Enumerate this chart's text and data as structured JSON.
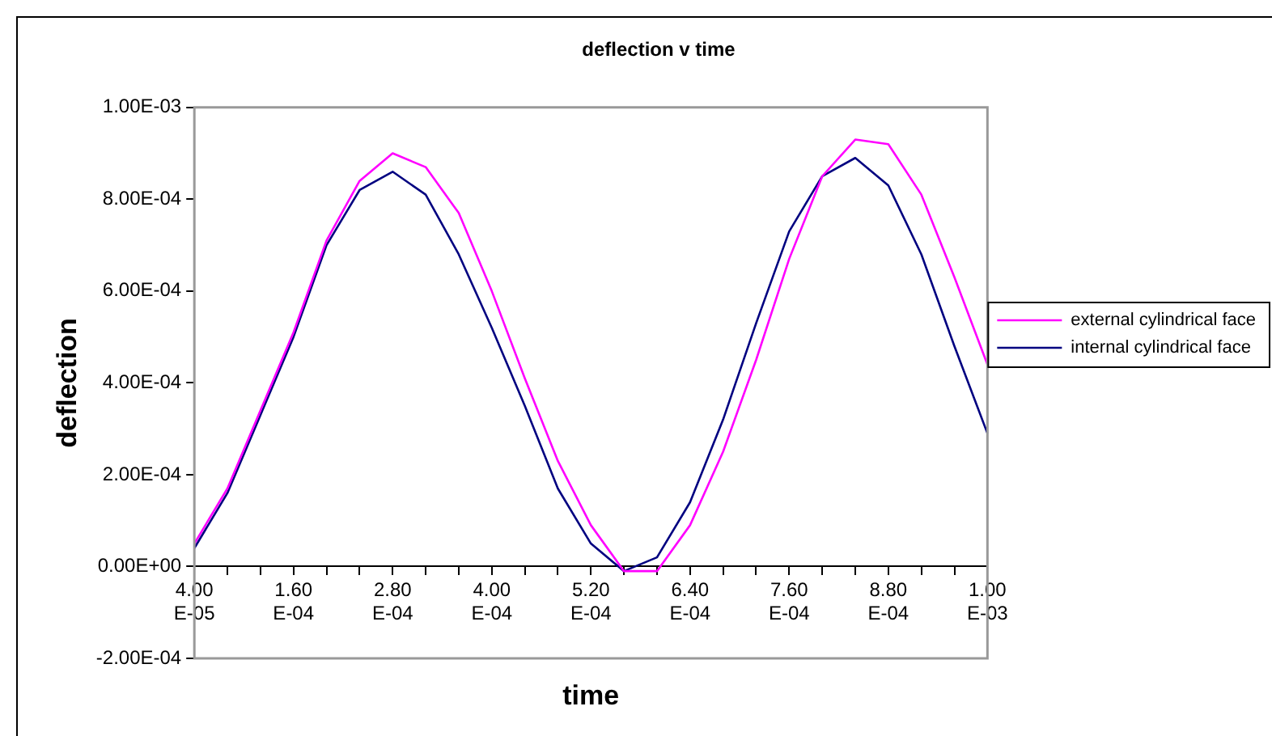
{
  "chart_data": {
    "type": "line",
    "title": "deflection v time",
    "xlabel": "time",
    "ylabel": "deflection",
    "categories": [
      "4.00E-05",
      null,
      null,
      "1.60E-04",
      null,
      null,
      "2.80E-04",
      null,
      null,
      "4.00E-04",
      null,
      null,
      "5.20E-04",
      null,
      null,
      "6.40E-04",
      null,
      null,
      "7.60E-04",
      null,
      null,
      "8.80E-04",
      null,
      null,
      "1.00E-03"
    ],
    "series": [
      {
        "name": "external cylindrical face",
        "color": "#ff00ff",
        "values": [
          5e-05,
          0.00017,
          0.00034,
          0.00051,
          0.00071,
          0.00084,
          0.0009,
          0.00087,
          0.00077,
          0.0006,
          0.00041,
          0.00023,
          9e-05,
          -1e-05,
          -1e-05,
          9e-05,
          0.00025,
          0.00045,
          0.00067,
          0.00085,
          0.00093,
          0.00092,
          0.00081,
          0.00063,
          0.00044
        ]
      },
      {
        "name": "internal cylindrical face",
        "color": "#000080",
        "values": [
          4e-05,
          0.00016,
          0.00033,
          0.0005,
          0.0007,
          0.00082,
          0.00086,
          0.00081,
          0.00068,
          0.00052,
          0.00035,
          0.00017,
          5e-05,
          -1e-05,
          2e-05,
          0.00014,
          0.00032,
          0.00053,
          0.00073,
          0.00085,
          0.00089,
          0.00083,
          0.00068,
          0.00048,
          0.00029
        ]
      }
    ],
    "ylim": [
      -0.0002,
      0.001
    ],
    "yticks": [
      {
        "value": -0.0002,
        "label": "-2.00E-04"
      },
      {
        "value": 0,
        "label": "0.00E+00"
      },
      {
        "value": 0.0002,
        "label": "2.00E-04"
      },
      {
        "value": 0.0004,
        "label": "4.00E-04"
      },
      {
        "value": 0.0006,
        "label": "6.00E-04"
      },
      {
        "value": 0.0008,
        "label": "8.00E-04"
      },
      {
        "value": 0.001,
        "label": "1.00E-03"
      }
    ],
    "grid": false,
    "legend": "right",
    "marker": "none",
    "line_style": "solid"
  }
}
